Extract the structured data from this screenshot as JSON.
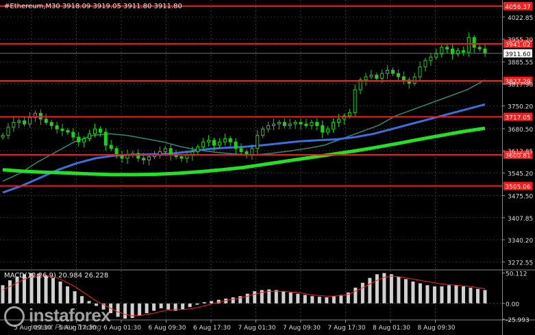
{
  "header": {
    "title": "#Ethereum,M30  3918.09 3919.05 3911.80 3911.80"
  },
  "price_axis": {
    "ticks": [
      "4022.85",
      "3955.20",
      "3885.55",
      "3817.90",
      "3750.20",
      "3680.50",
      "3612.85",
      "3545.20",
      "3475.50",
      "3407.85",
      "3340.20",
      "3272.55"
    ],
    "current_price": "3911.60"
  },
  "levels": [
    {
      "label": "4056.37",
      "value": 4056.37
    },
    {
      "label": "3941.02",
      "value": 3941.02
    },
    {
      "label": "3827.29",
      "value": 3827.29
    },
    {
      "label": "3717.05",
      "value": 3717.05
    },
    {
      "label": "3600.81",
      "value": 3600.81
    },
    {
      "label": "3505.06",
      "value": 3505.06
    }
  ],
  "macd": {
    "title": "MACD(12,26,9) 20.984 26.228",
    "ticks": [
      "50.112",
      "0.00",
      "-25.993"
    ]
  },
  "time_axis": [
    "5 Aug 09:30",
    "5 Aug 17:30",
    "6 Aug 01:30",
    "6 Aug 09:30",
    "6 Aug 17:30",
    "7 Aug 01:30",
    "7 Aug 09:30",
    "7 Aug 17:30",
    "8 Aug 01:30",
    "8 Aug 09:30"
  ],
  "watermark": {
    "name": "instaforex",
    "tagline": "Instant Forex Trading"
  },
  "colors": {
    "level_line": "#ff1a1a",
    "ma_fast": "#2e8b7a",
    "ma_mid": "#3a6fe0",
    "ma_slow": "#22e022",
    "candles": "#1fcf1f",
    "macd_hist": "#d0d0d0",
    "macd_signal": "#ff2020"
  },
  "chart_data": {
    "type": "candlestick",
    "symbol": "#Ethereum",
    "timeframe": "M30",
    "ohlc_last": {
      "open": 3918.09,
      "high": 3919.05,
      "low": 3911.8,
      "close": 3911.8
    },
    "ylim": [
      3250,
      4075
    ],
    "close_path": [
      3660,
      3685,
      3700,
      3705,
      3695,
      3715,
      3728,
      3710,
      3700,
      3690,
      3680,
      3675,
      3670,
      3655,
      3640,
      3650,
      3665,
      3680,
      3670,
      3630,
      3620,
      3600,
      3590,
      3600,
      3605,
      3590,
      3585,
      3595,
      3600,
      3610,
      3620,
      3600,
      3595,
      3590,
      3600,
      3610,
      3625,
      3640,
      3645,
      3630,
      3640,
      3650,
      3640,
      3620,
      3610,
      3600,
      3620,
      3660,
      3680,
      3690,
      3695,
      3700,
      3690,
      3695,
      3700,
      3695,
      3690,
      3700,
      3690,
      3670,
      3680,
      3700,
      3710,
      3720,
      3730,
      3800,
      3830,
      3840,
      3845,
      3835,
      3850,
      3860,
      3850,
      3840,
      3830,
      3820,
      3840,
      3870,
      3890,
      3900,
      3910,
      3930,
      3925,
      3910,
      3920,
      3915,
      3960,
      3930,
      3925,
      3912
    ],
    "ma_fast_path": [
      3520,
      3545,
      3580,
      3610,
      3640,
      3660,
      3665,
      3660,
      3650,
      3640,
      3625,
      3615,
      3608,
      3603,
      3600,
      3605,
      3612,
      3620,
      3630,
      3650,
      3670,
      3690,
      3720,
      3740,
      3760,
      3780,
      3800,
      3830
    ],
    "ma_mid_path": [
      3485,
      3505,
      3530,
      3555,
      3575,
      3590,
      3598,
      3601,
      3602,
      3604,
      3610,
      3618,
      3622,
      3625,
      3630,
      3636,
      3642,
      3645,
      3648,
      3655,
      3665,
      3680,
      3695,
      3710,
      3725,
      3740,
      3755
    ],
    "ma_slow_path": [
      3555,
      3550,
      3547,
      3545,
      3542,
      3540,
      3540,
      3541,
      3544,
      3549,
      3555,
      3562,
      3572,
      3582,
      3592,
      3602,
      3612,
      3623,
      3635,
      3648,
      3660,
      3672,
      3682
    ],
    "macd_hist": [
      30,
      38,
      44,
      48,
      50,
      49,
      46,
      42,
      36,
      28,
      20,
      12,
      4,
      -4,
      -10,
      -16,
      -22,
      -25,
      -24,
      -20,
      -16,
      -12,
      -8,
      -10,
      -12,
      -10,
      -6,
      -2,
      2,
      4,
      6,
      8,
      10,
      12,
      16,
      20,
      22,
      23,
      22,
      20,
      18,
      16,
      14,
      12,
      11,
      10,
      12,
      14,
      18,
      26,
      34,
      42,
      48,
      50,
      48,
      44,
      40,
      36,
      33,
      30,
      28,
      28,
      30,
      30,
      28,
      26,
      24,
      22
    ],
    "macd_signal": [
      22,
      28,
      34,
      40,
      44,
      46,
      46,
      44,
      40,
      34,
      28,
      20,
      12,
      4,
      -2,
      -8,
      -14,
      -18,
      -20,
      -20,
      -18,
      -16,
      -13,
      -11,
      -10,
      -10,
      -9,
      -7,
      -4,
      -1,
      2,
      5,
      7,
      9,
      12,
      15,
      18,
      20,
      20,
      20,
      19,
      18,
      16,
      14,
      13,
      12,
      12,
      13,
      15,
      20,
      26,
      32,
      38,
      43,
      45,
      44,
      42,
      40,
      38,
      36,
      34,
      32,
      31,
      30,
      29,
      28,
      26,
      24
    ]
  }
}
